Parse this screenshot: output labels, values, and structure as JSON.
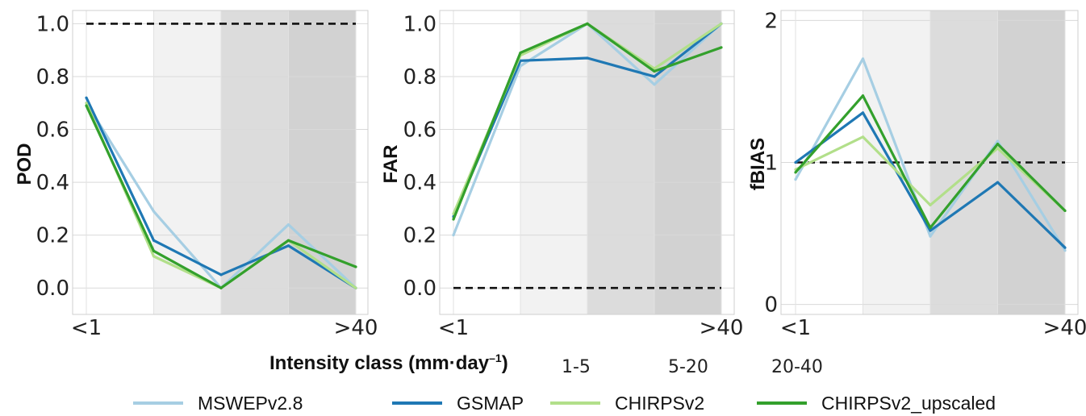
{
  "xlabel": {
    "main": "Intensity class (mm·day",
    "sup": "–1",
    "close": ")"
  },
  "shade_legend": [
    {
      "label": "1-5",
      "color": "#f2f2f2"
    },
    {
      "label": "5-20",
      "color": "#dcdcdc"
    },
    {
      "label": "20-40",
      "color": "#d2d2d2"
    }
  ],
  "series_legend": [
    {
      "name": "MSWEPv2.8",
      "color": "#a6cee3"
    },
    {
      "name": "GSMAP",
      "color": "#1f78b4"
    },
    {
      "name": "CHIRPSv2",
      "color": "#b2df8a"
    },
    {
      "name": "CHIRPSv2_upscaled",
      "color": "#33a02c"
    }
  ],
  "chart_data": [
    {
      "type": "line",
      "ylabel": "POD",
      "x_ticklabels": [
        "<1",
        ">40"
      ],
      "categories": [
        "<1",
        "1-5",
        "5-20",
        "20-40",
        ">40"
      ],
      "yticks": [
        "0.0",
        "0.2",
        "0.4",
        "0.6",
        "0.8",
        "1.0"
      ],
      "ylim": [
        -0.1,
        1.05
      ],
      "reference_line": 1.0,
      "series": [
        {
          "name": "MSWEPv2.8",
          "values": [
            0.7,
            0.29,
            0.0,
            0.24,
            0.0
          ]
        },
        {
          "name": "GSMAP",
          "values": [
            0.72,
            0.18,
            0.05,
            0.16,
            0.0
          ]
        },
        {
          "name": "CHIRPSv2",
          "values": [
            0.7,
            0.12,
            0.0,
            0.18,
            0.0
          ]
        },
        {
          "name": "CHIRPSv2_upscaled",
          "values": [
            0.69,
            0.14,
            0.0,
            0.18,
            0.08
          ]
        }
      ]
    },
    {
      "type": "line",
      "ylabel": "FAR",
      "x_ticklabels": [
        "<1",
        ">40"
      ],
      "categories": [
        "<1",
        "1-5",
        "5-20",
        "20-40",
        ">40"
      ],
      "yticks": [
        "0.0",
        "0.2",
        "0.4",
        "0.6",
        "0.8",
        "1.0"
      ],
      "ylim": [
        -0.1,
        1.05
      ],
      "reference_line": 0.0,
      "series": [
        {
          "name": "MSWEPv2.8",
          "values": [
            0.2,
            0.84,
            1.0,
            0.77,
            1.0
          ]
        },
        {
          "name": "GSMAP",
          "values": [
            0.27,
            0.86,
            0.87,
            0.8,
            1.0
          ]
        },
        {
          "name": "CHIRPSv2",
          "values": [
            0.28,
            0.88,
            1.0,
            0.83,
            1.0
          ]
        },
        {
          "name": "CHIRPSv2_upscaled",
          "values": [
            0.26,
            0.89,
            1.0,
            0.82,
            0.91
          ]
        }
      ]
    },
    {
      "type": "line",
      "ylabel": "fBIAS",
      "x_ticklabels": [
        "<1",
        ">40"
      ],
      "categories": [
        "<1",
        "1-5",
        "5-20",
        "20-40",
        ">40"
      ],
      "yticks": [
        "0",
        "1",
        "2"
      ],
      "ylim": [
        -0.07,
        2.07
      ],
      "reference_line": 1.0,
      "series": [
        {
          "name": "MSWEPv2.8",
          "values": [
            0.88,
            1.73,
            0.48,
            1.15,
            0.38
          ]
        },
        {
          "name": "GSMAP",
          "values": [
            1.0,
            1.35,
            0.52,
            0.86,
            0.4
          ]
        },
        {
          "name": "CHIRPSv2",
          "values": [
            0.95,
            1.18,
            0.7,
            1.1,
            0.66
          ]
        },
        {
          "name": "CHIRPSv2_upscaled",
          "values": [
            0.93,
            1.47,
            0.54,
            1.13,
            0.66
          ]
        }
      ]
    }
  ]
}
